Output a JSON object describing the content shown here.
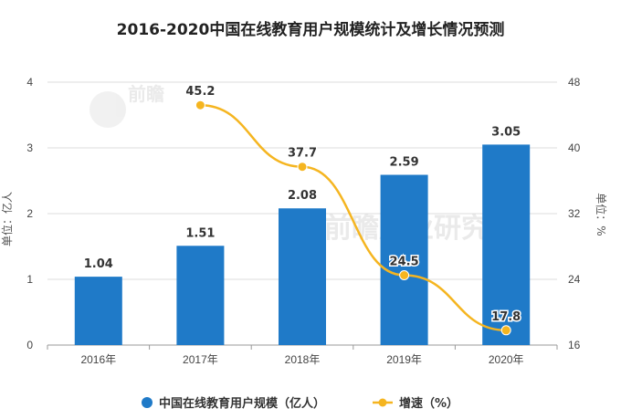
{
  "chart_data": {
    "type": "bar",
    "title": "2016-2020中国在线教育用户规模统计及增长情况预测",
    "categories": [
      "2016年",
      "2017年",
      "2018年",
      "2019年",
      "2020年"
    ],
    "series": [
      {
        "name": "中国在线教育用户规模（亿人）",
        "type": "bar",
        "axis": "left",
        "values": [
          1.04,
          1.51,
          2.08,
          2.59,
          3.05
        ],
        "color": "#1f7ac8"
      },
      {
        "name": "增速（%）",
        "type": "line",
        "axis": "right",
        "values": [
          null,
          45.2,
          37.7,
          24.5,
          17.8
        ],
        "color": "#f5b520"
      }
    ],
    "ylabel_left": "单位：亿人",
    "ylabel_right": "单位：%",
    "ylim_left": [
      0,
      4
    ],
    "yticks_left": [
      0,
      1,
      2,
      3,
      4
    ],
    "ylim_right": [
      16,
      48
    ],
    "yticks_right": [
      16,
      24,
      32,
      40,
      48
    ],
    "grid": true,
    "legend_position": "bottom"
  }
}
